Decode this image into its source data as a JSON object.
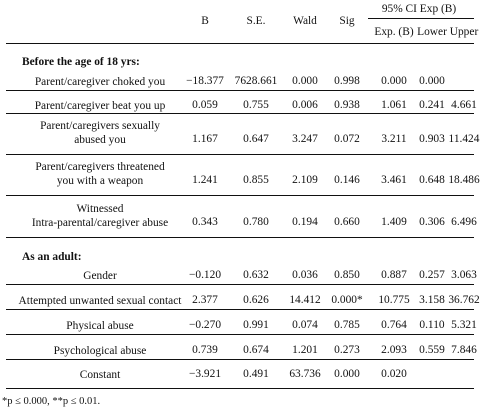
{
  "header": {
    "b": "B",
    "se": "S.E.",
    "wald": "Wald",
    "sig": "Sig",
    "ci_group": "95% CI Exp (B)",
    "exp": "Exp. (B)",
    "lower": "Lower",
    "upper": "Upper"
  },
  "sections": [
    {
      "title": "Before the age of 18 yrs:",
      "rows": [
        {
          "label": [
            "Parent/caregiver choked you"
          ],
          "b": "−18.377",
          "se": "7628.661",
          "wald": "0.000",
          "sig": "0.998",
          "exp": "0.000",
          "lower": "0.000",
          "upper": ""
        },
        {
          "label": [
            "Parent/caregiver beat you up"
          ],
          "b": "0.059",
          "se": "0.755",
          "wald": "0.006",
          "sig": "0.938",
          "exp": "1.061",
          "lower": "0.241",
          "upper": "4.661"
        },
        {
          "label": [
            "Parent/caregivers sexually",
            "abused you"
          ],
          "b": "1.167",
          "se": "0.647",
          "wald": "3.247",
          "sig": "0.072",
          "exp": "3.211",
          "lower": "0.903",
          "upper": "11.424"
        },
        {
          "label": [
            "Parent/caregivers threatened",
            "you with a weapon"
          ],
          "b": "1.241",
          "se": "0.855",
          "wald": "2.109",
          "sig": "0.146",
          "exp": "3.461",
          "lower": "0.648",
          "upper": "18.486"
        },
        {
          "label": [
            "Witnessed",
            "Intra-parental/caregiver abuse"
          ],
          "b": "0.343",
          "se": "0.780",
          "wald": "0.194",
          "sig": "0.660",
          "exp": "1.409",
          "lower": "0.306",
          "upper": "6.496"
        }
      ]
    },
    {
      "title": "As an adult:",
      "rows": [
        {
          "label": [
            "Gender"
          ],
          "b": "−0.120",
          "se": "0.632",
          "wald": "0.036",
          "sig": "0.850",
          "exp": "0.887",
          "lower": "0.257",
          "upper": "3.063"
        },
        {
          "label": [
            "Attempted unwanted sexual contact"
          ],
          "b": "2.377",
          "se": "0.626",
          "wald": "14.412",
          "sig": "0.000*",
          "exp": "10.775",
          "lower": "3.158",
          "upper": "36.762"
        },
        {
          "label": [
            "Physical abuse"
          ],
          "b": "−0.270",
          "se": "0.991",
          "wald": "0.074",
          "sig": "0.785",
          "exp": "0.764",
          "lower": "0.110",
          "upper": "5.321"
        },
        {
          "label": [
            "Psychological abuse"
          ],
          "b": "0.739",
          "se": "0.674",
          "wald": "1.201",
          "sig": "0.273",
          "exp": "2.093",
          "lower": "0.559",
          "upper": "7.846"
        },
        {
          "label": [
            "Constant"
          ],
          "b": "−3.921",
          "se": "0.491",
          "wald": "63.736",
          "sig": "0.000",
          "exp": "0.020",
          "lower": "",
          "upper": ""
        }
      ]
    }
  ],
  "footnote": "*p ≤ 0.000, **p ≤ 0.01."
}
